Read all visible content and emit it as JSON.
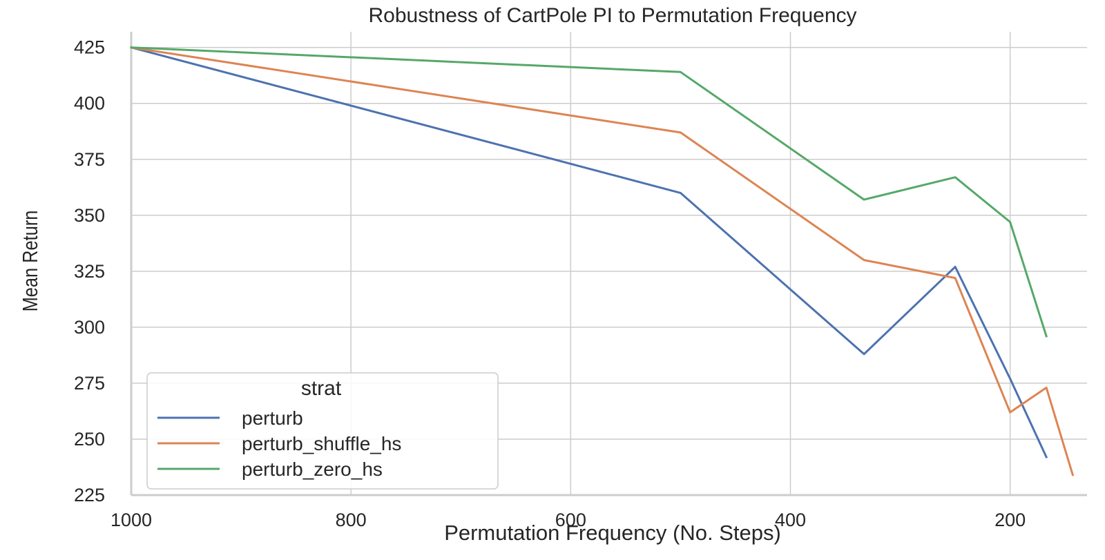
{
  "chart_data": {
    "type": "line",
    "title": "Robustness of CartPole PI to Permutation Frequency",
    "xlabel": "Permutation Frequency (No. Steps)",
    "ylabel": "Mean Return",
    "x_reversed": true,
    "xlim": [
      1000,
      130
    ],
    "ylim": [
      225,
      432
    ],
    "x_ticks": [
      1000,
      800,
      600,
      400,
      200
    ],
    "y_ticks": [
      225,
      250,
      275,
      300,
      325,
      350,
      375,
      400,
      425
    ],
    "grid": true,
    "legend": {
      "title": "strat",
      "placement": "bottom-left"
    },
    "series": [
      {
        "name": "perturb",
        "color": "#4c72b0",
        "x": [
          1000,
          500,
          333,
          250,
          200,
          167
        ],
        "y": [
          425,
          360,
          288,
          327,
          277,
          242
        ]
      },
      {
        "name": "perturb_shuffle_hs",
        "color": "#dd8452",
        "x": [
          1000,
          500,
          333,
          250,
          200,
          167,
          143
        ],
        "y": [
          425,
          387,
          330,
          322,
          262,
          273,
          234
        ]
      },
      {
        "name": "perturb_zero_hs",
        "color": "#55a868",
        "x": [
          1000,
          500,
          333,
          250,
          200,
          167
        ],
        "y": [
          425,
          414,
          357,
          367,
          347,
          296
        ]
      }
    ]
  }
}
